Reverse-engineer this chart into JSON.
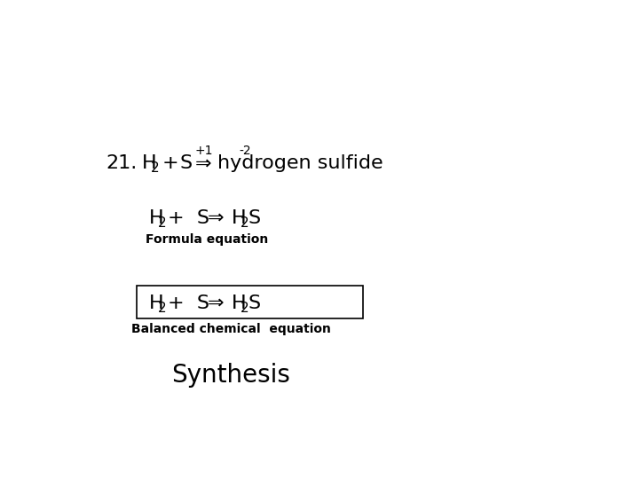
{
  "bg_color": "#ffffff",
  "text_color": "#000000",
  "fig_width": 7.2,
  "fig_height": 5.4,
  "dpi": 100,
  "number": "21.",
  "charge1": "+1",
  "charge2": "-2",
  "name": "hydrogen sulfide",
  "formula_label": "Formula equation",
  "box_label": "Balanced chemical  equation",
  "synthesis_label": "Synthesis",
  "arrow": "⇒",
  "font_size_main": 16,
  "font_size_sub": 11,
  "font_size_charge": 10,
  "font_size_label": 10,
  "font_size_synthesis": 20,
  "font_size_number": 16
}
